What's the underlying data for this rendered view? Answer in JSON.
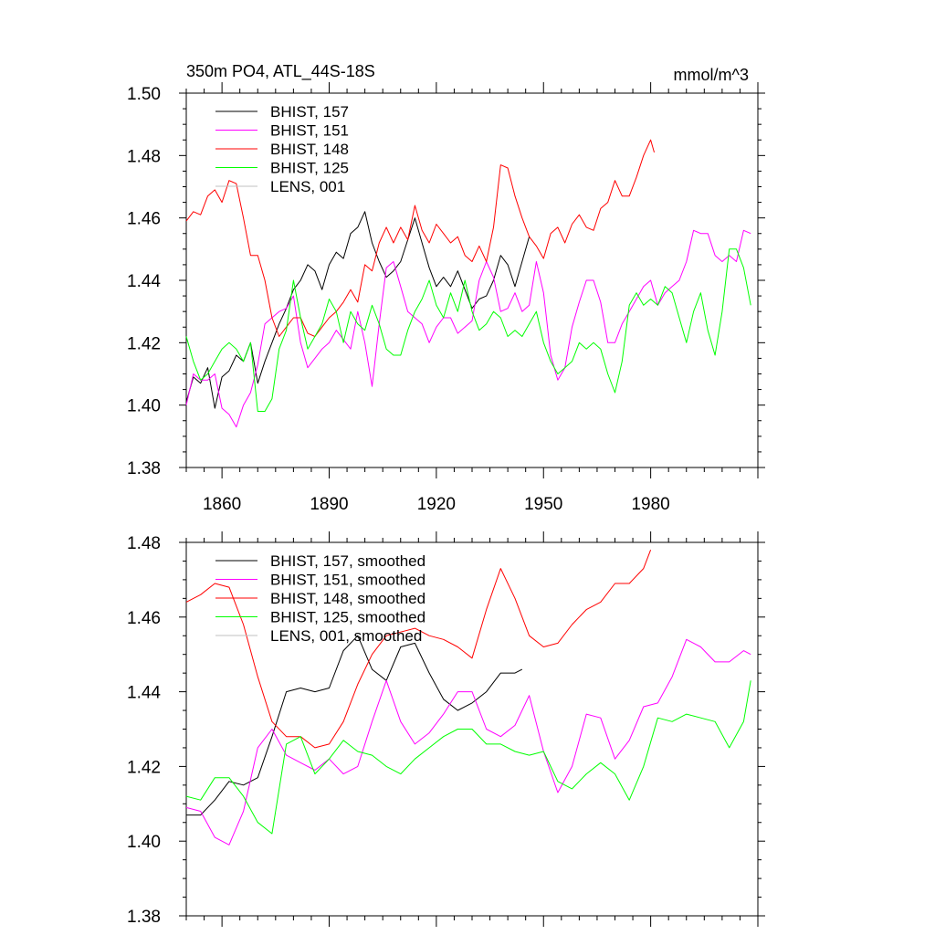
{
  "chart_data": [
    {
      "type": "line",
      "title": "350m PO4, ATL_44S-18S",
      "units": "mmol/m^3",
      "xlabel": "",
      "ylabel": "",
      "xlim": [
        1850,
        2010
      ],
      "ylim": [
        1.38,
        1.5
      ],
      "yticks": [
        "1.38",
        "1.40",
        "1.42",
        "1.44",
        "1.46",
        "1.48",
        "1.50"
      ],
      "xticks": [
        "1860",
        "1890",
        "1920",
        "1950",
        "1980"
      ],
      "legend_position": "top-left",
      "grid": false,
      "series": [
        {
          "name": "BHIST, 157",
          "color": "#000000",
          "x": [
            1850,
            1852,
            1854,
            1856,
            1858,
            1860,
            1862,
            1864,
            1866,
            1868,
            1870,
            1872,
            1874,
            1876,
            1878,
            1880,
            1882,
            1884,
            1886,
            1888,
            1890,
            1892,
            1894,
            1896,
            1898,
            1900,
            1902,
            1904,
            1906,
            1908,
            1910,
            1912,
            1914,
            1916,
            1918,
            1920,
            1922,
            1924,
            1926,
            1928,
            1930,
            1932,
            1934,
            1936,
            1938,
            1940,
            1942,
            1944,
            1946
          ],
          "y": [
            1.401,
            1.409,
            1.407,
            1.412,
            1.399,
            1.409,
            1.411,
            1.416,
            1.414,
            1.42,
            1.407,
            1.414,
            1.42,
            1.426,
            1.431,
            1.437,
            1.44,
            1.445,
            1.443,
            1.437,
            1.445,
            1.449,
            1.447,
            1.455,
            1.457,
            1.462,
            1.452,
            1.446,
            1.441,
            1.443,
            1.446,
            1.453,
            1.46,
            1.452,
            1.444,
            1.438,
            1.441,
            1.438,
            1.443,
            1.437,
            1.431,
            1.434,
            1.435,
            1.44,
            1.448,
            1.445,
            1.438,
            1.446,
            1.454
          ]
        },
        {
          "name": "BHIST, 151",
          "color": "#ff00ff",
          "x": [
            1850,
            1852,
            1854,
            1856,
            1858,
            1860,
            1862,
            1864,
            1866,
            1868,
            1870,
            1872,
            1874,
            1876,
            1878,
            1880,
            1882,
            1884,
            1886,
            1888,
            1890,
            1892,
            1894,
            1896,
            1898,
            1900,
            1902,
            1904,
            1906,
            1908,
            1910,
            1912,
            1914,
            1916,
            1918,
            1920,
            1922,
            1924,
            1926,
            1928,
            1930,
            1932,
            1934,
            1936,
            1938,
            1940,
            1942,
            1944,
            1946,
            1948,
            1950,
            1952,
            1954,
            1956,
            1958,
            1960,
            1962,
            1964,
            1966,
            1968,
            1970,
            1972,
            1974,
            1976,
            1978,
            1980,
            1982,
            1984,
            1986,
            1988,
            1990,
            1992,
            1994,
            1996,
            1998,
            2000,
            2002,
            2004,
            2006,
            2008
          ],
          "y": [
            1.4,
            1.41,
            1.408,
            1.408,
            1.41,
            1.399,
            1.397,
            1.393,
            1.4,
            1.404,
            1.413,
            1.426,
            1.428,
            1.43,
            1.431,
            1.435,
            1.42,
            1.412,
            1.415,
            1.418,
            1.42,
            1.424,
            1.421,
            1.418,
            1.43,
            1.42,
            1.406,
            1.426,
            1.444,
            1.446,
            1.438,
            1.43,
            1.428,
            1.426,
            1.42,
            1.425,
            1.428,
            1.428,
            1.423,
            1.425,
            1.427,
            1.44,
            1.446,
            1.441,
            1.43,
            1.431,
            1.436,
            1.43,
            1.432,
            1.446,
            1.436,
            1.416,
            1.408,
            1.412,
            1.425,
            1.433,
            1.44,
            1.44,
            1.433,
            1.42,
            1.42,
            1.426,
            1.43,
            1.434,
            1.438,
            1.44,
            1.432,
            1.436,
            1.438,
            1.44,
            1.446,
            1.456,
            1.455,
            1.455,
            1.448,
            1.446,
            1.448,
            1.446,
            1.456,
            1.455
          ]
        },
        {
          "name": "BHIST, 148",
          "color": "#ff0000",
          "x": [
            1850,
            1852,
            1854,
            1856,
            1858,
            1860,
            1862,
            1864,
            1866,
            1868,
            1870,
            1872,
            1874,
            1876,
            1878,
            1880,
            1882,
            1884,
            1886,
            1888,
            1890,
            1892,
            1894,
            1896,
            1898,
            1900,
            1902,
            1904,
            1906,
            1908,
            1910,
            1912,
            1914,
            1916,
            1918,
            1920,
            1922,
            1924,
            1926,
            1928,
            1930,
            1932,
            1934,
            1936,
            1938,
            1940,
            1942,
            1944,
            1946,
            1948,
            1950,
            1952,
            1954,
            1956,
            1958,
            1960,
            1962,
            1964,
            1966,
            1968,
            1970,
            1972,
            1974,
            1976,
            1978,
            1980,
            1981
          ],
          "y": [
            1.459,
            1.462,
            1.461,
            1.467,
            1.469,
            1.465,
            1.472,
            1.471,
            1.46,
            1.448,
            1.448,
            1.44,
            1.428,
            1.422,
            1.425,
            1.428,
            1.428,
            1.423,
            1.422,
            1.425,
            1.428,
            1.43,
            1.433,
            1.437,
            1.433,
            1.445,
            1.443,
            1.452,
            1.457,
            1.452,
            1.457,
            1.453,
            1.464,
            1.456,
            1.452,
            1.458,
            1.455,
            1.452,
            1.454,
            1.448,
            1.446,
            1.451,
            1.446,
            1.457,
            1.477,
            1.476,
            1.467,
            1.46,
            1.454,
            1.451,
            1.447,
            1.455,
            1.457,
            1.452,
            1.458,
            1.461,
            1.457,
            1.456,
            1.463,
            1.465,
            1.472,
            1.467,
            1.467,
            1.473,
            1.48,
            1.485,
            1.481
          ]
        },
        {
          "name": "BHIST, 125",
          "color": "#00ff00",
          "x": [
            1850,
            1852,
            1854,
            1856,
            1858,
            1860,
            1862,
            1864,
            1866,
            1868,
            1870,
            1872,
            1874,
            1876,
            1878,
            1880,
            1882,
            1884,
            1886,
            1888,
            1890,
            1892,
            1894,
            1896,
            1898,
            1900,
            1902,
            1904,
            1906,
            1908,
            1910,
            1912,
            1914,
            1916,
            1918,
            1920,
            1922,
            1924,
            1926,
            1928,
            1930,
            1932,
            1934,
            1936,
            1938,
            1940,
            1942,
            1944,
            1946,
            1948,
            1950,
            1952,
            1954,
            1956,
            1958,
            1960,
            1962,
            1964,
            1966,
            1968,
            1970,
            1972,
            1974,
            1976,
            1978,
            1980,
            1982,
            1984,
            1986,
            1988,
            1990,
            1992,
            1994,
            1996,
            1998,
            2000,
            2002,
            2004,
            2006,
            2008
          ],
          "y": [
            1.422,
            1.414,
            1.408,
            1.41,
            1.414,
            1.418,
            1.42,
            1.418,
            1.414,
            1.42,
            1.398,
            1.398,
            1.402,
            1.418,
            1.424,
            1.44,
            1.428,
            1.418,
            1.422,
            1.426,
            1.434,
            1.43,
            1.42,
            1.43,
            1.426,
            1.424,
            1.432,
            1.426,
            1.418,
            1.416,
            1.416,
            1.424,
            1.43,
            1.434,
            1.44,
            1.432,
            1.428,
            1.436,
            1.43,
            1.44,
            1.43,
            1.424,
            1.426,
            1.43,
            1.428,
            1.422,
            1.424,
            1.422,
            1.426,
            1.43,
            1.42,
            1.414,
            1.41,
            1.412,
            1.414,
            1.42,
            1.418,
            1.42,
            1.418,
            1.41,
            1.404,
            1.414,
            1.432,
            1.436,
            1.432,
            1.434,
            1.432,
            1.438,
            1.436,
            1.428,
            1.42,
            1.43,
            1.436,
            1.424,
            1.416,
            1.43,
            1.45,
            1.45,
            1.444,
            1.432
          ]
        },
        {
          "name": "LENS, 001",
          "color": "#c0c0c0",
          "x": [],
          "y": []
        }
      ]
    },
    {
      "type": "line",
      "title": "",
      "xlim": [
        1850,
        2010
      ],
      "ylim": [
        1.38,
        1.48
      ],
      "yticks": [
        "1.38",
        "1.40",
        "1.42",
        "1.44",
        "1.46",
        "1.48"
      ],
      "xticks": [],
      "legend_position": "top-left",
      "grid": false,
      "series": [
        {
          "name": "BHIST, 157, smoothed",
          "color": "#000000",
          "x": [
            1850,
            1854,
            1858,
            1862,
            1866,
            1870,
            1874,
            1878,
            1882,
            1886,
            1890,
            1894,
            1898,
            1902,
            1906,
            1910,
            1914,
            1918,
            1922,
            1926,
            1930,
            1934,
            1938,
            1942,
            1944
          ],
          "y": [
            1.407,
            1.407,
            1.411,
            1.416,
            1.415,
            1.417,
            1.428,
            1.44,
            1.441,
            1.44,
            1.441,
            1.451,
            1.455,
            1.446,
            1.443,
            1.452,
            1.453,
            1.445,
            1.438,
            1.435,
            1.437,
            1.44,
            1.445,
            1.445,
            1.446
          ]
        },
        {
          "name": "BHIST, 151, smoothed",
          "color": "#ff00ff",
          "x": [
            1850,
            1854,
            1858,
            1862,
            1866,
            1870,
            1874,
            1878,
            1882,
            1886,
            1890,
            1894,
            1898,
            1902,
            1906,
            1910,
            1914,
            1918,
            1922,
            1926,
            1930,
            1934,
            1938,
            1942,
            1946,
            1950,
            1954,
            1958,
            1962,
            1966,
            1970,
            1974,
            1978,
            1982,
            1986,
            1990,
            1994,
            1998,
            2002,
            2006,
            2008
          ],
          "y": [
            1.409,
            1.408,
            1.401,
            1.399,
            1.408,
            1.425,
            1.43,
            1.423,
            1.421,
            1.419,
            1.422,
            1.418,
            1.42,
            1.432,
            1.443,
            1.432,
            1.426,
            1.429,
            1.434,
            1.44,
            1.44,
            1.43,
            1.428,
            1.431,
            1.439,
            1.424,
            1.413,
            1.42,
            1.434,
            1.433,
            1.422,
            1.427,
            1.436,
            1.437,
            1.444,
            1.454,
            1.452,
            1.448,
            1.448,
            1.451,
            1.45
          ]
        },
        {
          "name": "BHIST, 148, smoothed",
          "color": "#ff0000",
          "x": [
            1850,
            1854,
            1858,
            1862,
            1866,
            1870,
            1874,
            1878,
            1882,
            1886,
            1890,
            1894,
            1898,
            1902,
            1906,
            1910,
            1914,
            1918,
            1922,
            1926,
            1930,
            1934,
            1938,
            1942,
            1946,
            1950,
            1954,
            1958,
            1962,
            1966,
            1970,
            1974,
            1978,
            1980
          ],
          "y": [
            1.464,
            1.466,
            1.469,
            1.468,
            1.458,
            1.444,
            1.432,
            1.428,
            1.428,
            1.425,
            1.426,
            1.432,
            1.442,
            1.45,
            1.455,
            1.456,
            1.457,
            1.455,
            1.454,
            1.452,
            1.449,
            1.462,
            1.473,
            1.465,
            1.455,
            1.452,
            1.453,
            1.458,
            1.462,
            1.464,
            1.469,
            1.469,
            1.473,
            1.478
          ]
        },
        {
          "name": "BHIST, 125, smoothed",
          "color": "#00ff00",
          "x": [
            1850,
            1854,
            1858,
            1862,
            1866,
            1870,
            1874,
            1878,
            1882,
            1886,
            1890,
            1894,
            1898,
            1902,
            1906,
            1910,
            1914,
            1918,
            1922,
            1926,
            1930,
            1934,
            1938,
            1942,
            1946,
            1950,
            1954,
            1958,
            1962,
            1966,
            1970,
            1974,
            1978,
            1982,
            1986,
            1990,
            1994,
            1998,
            2002,
            2006,
            2008
          ],
          "y": [
            1.412,
            1.411,
            1.417,
            1.417,
            1.412,
            1.405,
            1.402,
            1.426,
            1.428,
            1.418,
            1.422,
            1.427,
            1.424,
            1.423,
            1.42,
            1.418,
            1.422,
            1.425,
            1.428,
            1.43,
            1.43,
            1.426,
            1.426,
            1.424,
            1.423,
            1.424,
            1.416,
            1.414,
            1.418,
            1.421,
            1.418,
            1.411,
            1.42,
            1.433,
            1.432,
            1.434,
            1.433,
            1.432,
            1.425,
            1.432,
            1.443
          ]
        },
        {
          "name": "LENS, 001, smoothed",
          "color": "#c0c0c0",
          "x": [],
          "y": []
        }
      ]
    }
  ]
}
